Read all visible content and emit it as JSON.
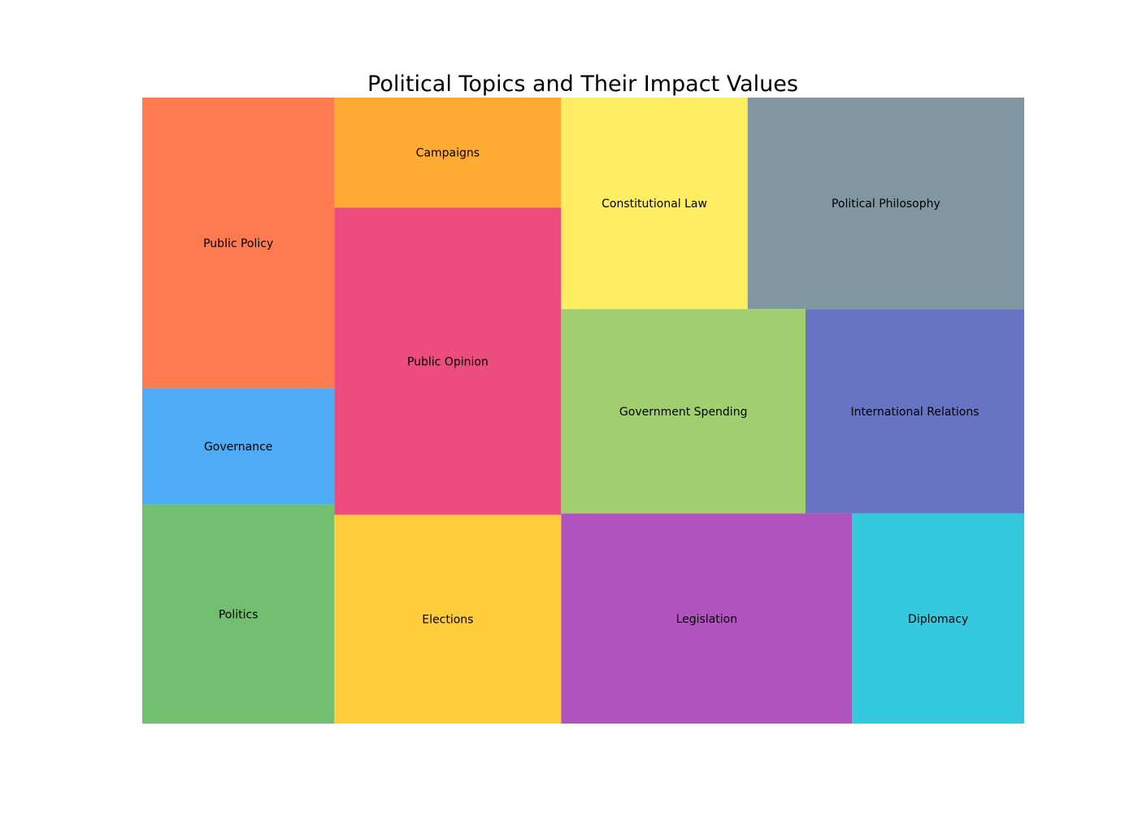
{
  "chart_data": {
    "type": "treemap",
    "title": "Political Topics and Their Impact Values",
    "items": [
      {
        "label": "Public Policy",
        "value": 85,
        "color": "#ff7a4f"
      },
      {
        "label": "Governance",
        "value": 34,
        "color": "#4eabf5"
      },
      {
        "label": "Politics",
        "value": 64,
        "color": "#72bf72"
      },
      {
        "label": "Campaigns",
        "value": 38,
        "color": "#ffab34"
      },
      {
        "label": "Public Opinion",
        "value": 106,
        "color": "#ed4c80"
      },
      {
        "label": "Elections",
        "value": 72,
        "color": "#ffcc3b"
      },
      {
        "label": "Constitutional Law",
        "value": 60,
        "color": "#ffed62"
      },
      {
        "label": "Political Philosophy",
        "value": 89,
        "color": "#8096a0"
      },
      {
        "label": "Government Spending",
        "value": 76,
        "color": "#a1ce6f"
      },
      {
        "label": "International Relations",
        "value": 68,
        "color": "#6774c3"
      },
      {
        "label": "Legislation",
        "value": 93,
        "color": "#b053be"
      },
      {
        "label": "Diplomacy",
        "value": 55,
        "color": "#34c8dc"
      }
    ]
  }
}
